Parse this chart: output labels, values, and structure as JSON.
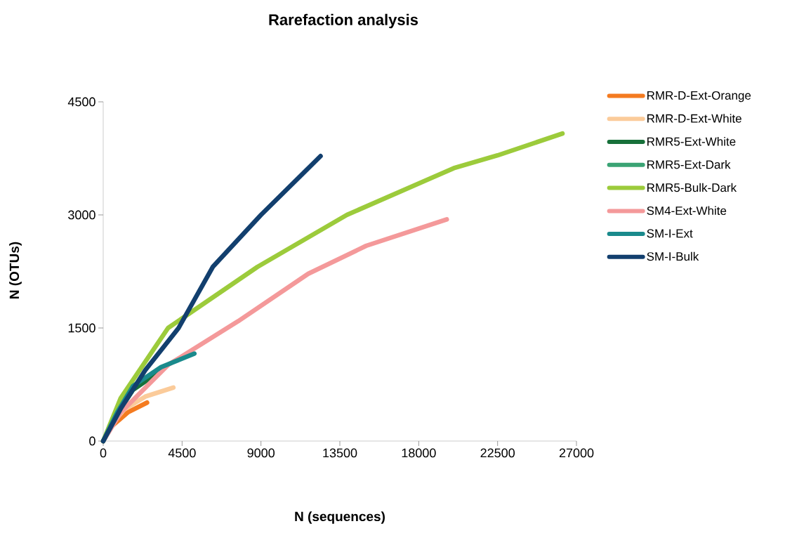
{
  "chart_data": {
    "type": "line",
    "title": "Rarefaction analysis",
    "xlabel": "N (sequences)",
    "ylabel": "N (OTUs)",
    "xlim": [
      0,
      27000
    ],
    "ylim": [
      0,
      4500
    ],
    "xticks": [
      0,
      4500,
      9000,
      13500,
      18000,
      22500,
      27000
    ],
    "yticks": [
      0,
      1500,
      3000,
      4500
    ],
    "grid": false,
    "legend": "right",
    "marker": "none",
    "line_style": "solid",
    "series": [
      {
        "name": "RMR-D-Ext-Orange",
        "color": "#f47b20",
        "x": [
          0,
          400,
          1400,
          2500
        ],
        "values": [
          0,
          180,
          380,
          510
        ]
      },
      {
        "name": "RMR-D-Ext-White",
        "color": "#fbcb9a",
        "x": [
          0,
          400,
          1200,
          2400,
          4000
        ],
        "values": [
          0,
          200,
          420,
          590,
          710
        ]
      },
      {
        "name": "RMR5-Ext-White",
        "color": "#17703a",
        "x": [
          0,
          800,
          1700,
          3200
        ],
        "values": [
          0,
          360,
          680,
          920
        ]
      },
      {
        "name": "RMR5-Ext-Dark",
        "color": "#3aa374"
      },
      {
        "name": "RMR5-Bulk-Dark",
        "color": "#9ccb3b",
        "x": [
          0,
          1000,
          3700,
          8800,
          13900,
          20000,
          22500,
          26200
        ],
        "values": [
          0,
          570,
          1500,
          2310,
          3000,
          3620,
          3790,
          4080
        ]
      },
      {
        "name": "SM4-Ext-White",
        "color": "#f4999a",
        "x": [
          0,
          1000,
          3700,
          7700,
          11700,
          15000,
          19600
        ],
        "values": [
          0,
          380,
          1010,
          1590,
          2220,
          2590,
          2940
        ]
      },
      {
        "name": "SM-I-Ext",
        "color": "#1a8a8c",
        "x": [
          0,
          800,
          1700,
          3300,
          5200
        ],
        "values": [
          0,
          380,
          730,
          980,
          1160
        ]
      },
      {
        "name": "SM-I-Bulk",
        "color": "#123f6e",
        "x": [
          0,
          1000,
          2400,
          4300,
          6250,
          9000,
          12400
        ],
        "values": [
          0,
          430,
          940,
          1500,
          2310,
          3000,
          3780
        ]
      }
    ]
  }
}
